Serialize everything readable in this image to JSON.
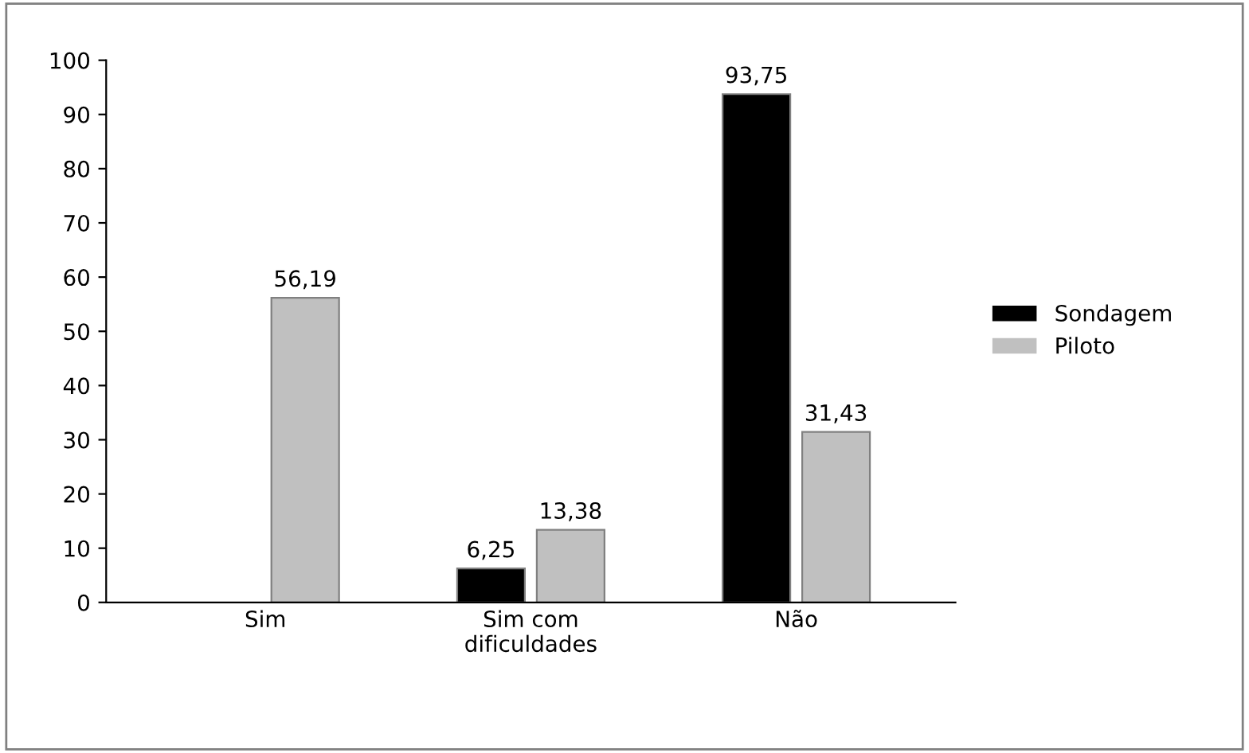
{
  "chart_data": {
    "type": "bar",
    "categories": [
      "Sim",
      "Sim com\ndificuldades",
      "Não"
    ],
    "series": [
      {
        "name": "Sondagem",
        "color": "#000000",
        "values": [
          null,
          6.25,
          93.75
        ],
        "value_labels": [
          null,
          "6,25",
          "93,75"
        ]
      },
      {
        "name": "Piloto",
        "color": "#c0c0c0",
        "values": [
          56.19,
          13.38,
          31.43
        ],
        "value_labels": [
          "56,19",
          "13,38",
          "31,43"
        ]
      }
    ],
    "ylim": [
      0,
      100
    ],
    "yticks": [
      0,
      10,
      20,
      30,
      40,
      50,
      60,
      70,
      80,
      90,
      100
    ],
    "grid": false,
    "legend": "right"
  }
}
